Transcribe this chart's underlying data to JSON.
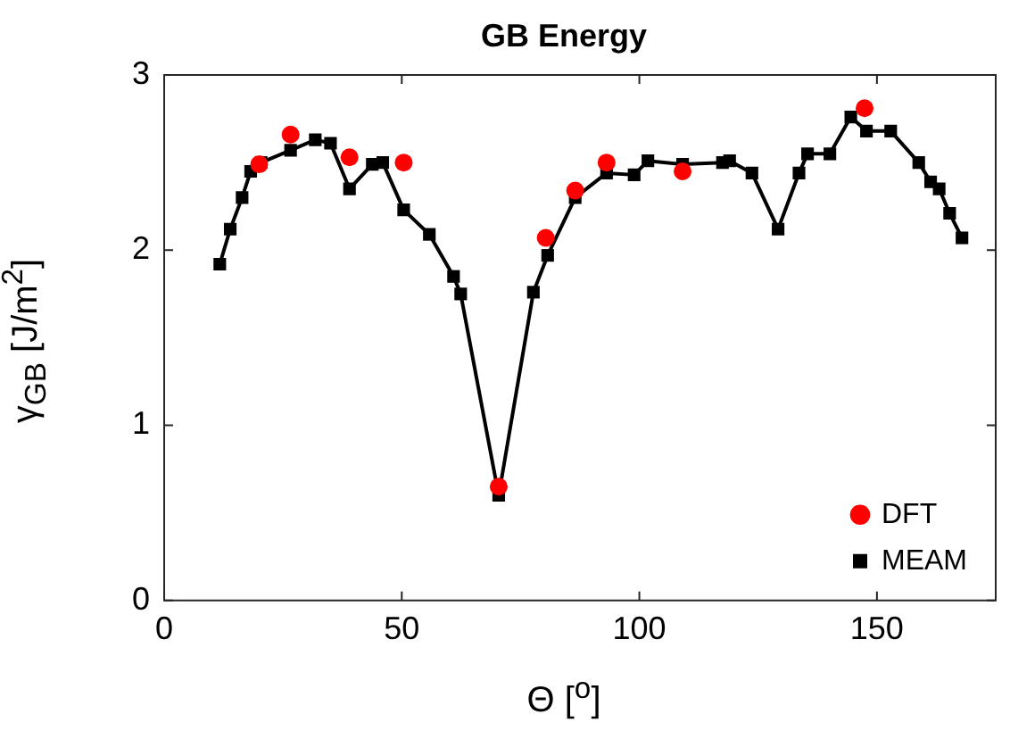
{
  "chart_data": {
    "type": "line",
    "title": "GB Energy",
    "xlabel": "Θ [$^{o}$]",
    "ylabel": "γ$_{GB}$ [J/m$^{2}$]",
    "xlim": [
      0,
      175
    ],
    "xticks": [
      0,
      50,
      100,
      150
    ],
    "ylim": [
      0,
      3
    ],
    "yticks": [
      0,
      1,
      2,
      3
    ],
    "grid": false,
    "legend": "bottom right",
    "series": [
      {
        "name": "MEAM",
        "color": "#000000",
        "marker": "square",
        "x": [
          11.7,
          13.9,
          16.4,
          18.2,
          20.4,
          26.6,
          31.8,
          35.0,
          39.0,
          43.8,
          46.0,
          50.4,
          55.8,
          60.9,
          62.4,
          70.4,
          77.7,
          80.7,
          86.5,
          93.1,
          98.9,
          101.8,
          109.1,
          117.5,
          119.0,
          123.7,
          129.2,
          133.6,
          135.4,
          140.1,
          144.5,
          147.8,
          152.9,
          158.8,
          161.3,
          163.1,
          165.3,
          167.9
        ],
        "values": [
          1.92,
          2.12,
          2.3,
          2.45,
          2.5,
          2.57,
          2.63,
          2.61,
          2.35,
          2.49,
          2.5,
          2.23,
          2.09,
          1.85,
          1.75,
          0.6,
          1.76,
          1.97,
          2.3,
          2.44,
          2.43,
          2.51,
          2.49,
          2.5,
          2.51,
          2.44,
          2.12,
          2.44,
          2.55,
          2.55,
          2.76,
          2.68,
          2.68,
          2.5,
          2.39,
          2.35,
          2.21,
          2.07
        ]
      },
      {
        "name": "DFT",
        "type": "scatter",
        "color": "#ff0000",
        "marker": "circle",
        "x": [
          20.0,
          26.6,
          39.0,
          50.4,
          70.4,
          80.3,
          86.5,
          93.1,
          109.1,
          147.4
        ],
        "values": [
          2.49,
          2.66,
          2.53,
          2.5,
          0.65,
          2.07,
          2.34,
          2.5,
          2.45,
          2.81
        ]
      }
    ]
  }
}
